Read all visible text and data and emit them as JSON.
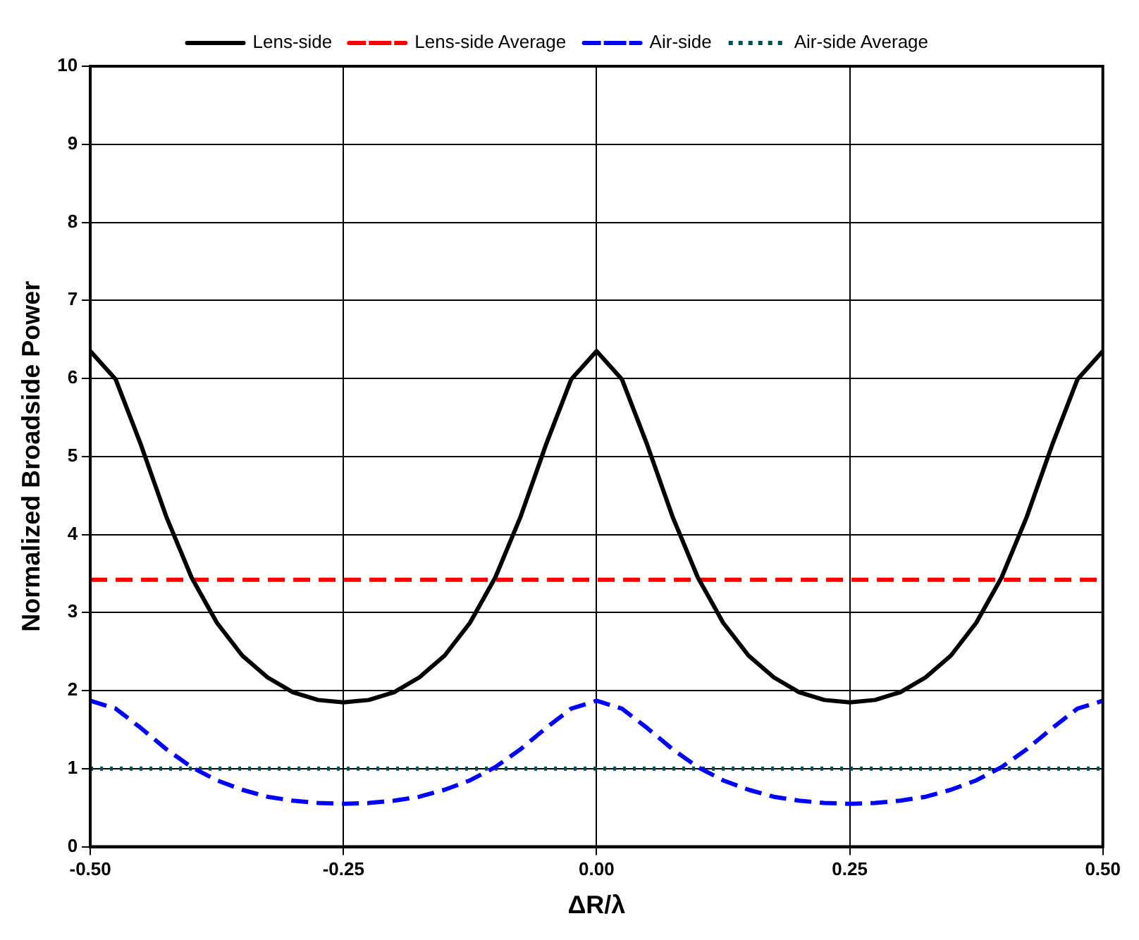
{
  "chart_data": {
    "type": "line",
    "xlabel": "ΔR/λ",
    "ylabel": "Normalized Broadside Power",
    "x": [
      -0.5,
      -0.475,
      -0.45,
      -0.425,
      -0.4,
      -0.375,
      -0.35,
      -0.325,
      -0.3,
      -0.275,
      -0.25,
      -0.225,
      -0.2,
      -0.175,
      -0.15,
      -0.125,
      -0.1,
      -0.075,
      -0.05,
      -0.025,
      0,
      0.025,
      0.05,
      0.075,
      0.1,
      0.125,
      0.15,
      0.175,
      0.2,
      0.225,
      0.25,
      0.275,
      0.3,
      0.325,
      0.35,
      0.375,
      0.4,
      0.425,
      0.45,
      0.475,
      0.5
    ],
    "series": [
      {
        "name": "Lens-side",
        "color": "#000000",
        "line_style": "solid",
        "values": [
          6.35,
          5.99,
          5.15,
          4.23,
          3.45,
          2.87,
          2.45,
          2.17,
          1.98,
          1.88,
          1.85,
          1.88,
          1.98,
          2.17,
          2.45,
          2.87,
          3.45,
          4.23,
          5.15,
          5.99,
          6.35,
          5.99,
          5.15,
          4.23,
          3.45,
          2.87,
          2.45,
          2.17,
          1.98,
          1.88,
          1.85,
          1.88,
          1.98,
          2.17,
          2.45,
          2.87,
          3.45,
          4.23,
          5.15,
          5.99,
          6.35
        ]
      },
      {
        "name": "Lens-side Average",
        "color": "#ff0000",
        "line_style": "dashed",
        "values": [
          3.42,
          3.42,
          3.42,
          3.42,
          3.42,
          3.42,
          3.42,
          3.42,
          3.42,
          3.42,
          3.42,
          3.42,
          3.42,
          3.42,
          3.42,
          3.42,
          3.42,
          3.42,
          3.42,
          3.42,
          3.42,
          3.42,
          3.42,
          3.42,
          3.42,
          3.42,
          3.42,
          3.42,
          3.42,
          3.42,
          3.42,
          3.42,
          3.42,
          3.42,
          3.42,
          3.42,
          3.42,
          3.42,
          3.42,
          3.42,
          3.42
        ]
      },
      {
        "name": "Air-side",
        "color": "#0000ff",
        "line_style": "dashed",
        "values": [
          1.87,
          1.77,
          1.52,
          1.25,
          1.02,
          0.85,
          0.73,
          0.64,
          0.59,
          0.56,
          0.55,
          0.56,
          0.59,
          0.64,
          0.73,
          0.85,
          1.02,
          1.25,
          1.52,
          1.77,
          1.87,
          1.77,
          1.52,
          1.25,
          1.02,
          0.85,
          0.73,
          0.64,
          0.59,
          0.56,
          0.55,
          0.56,
          0.59,
          0.64,
          0.73,
          0.85,
          1.02,
          1.25,
          1.52,
          1.77,
          1.87
        ]
      },
      {
        "name": "Air-side Average",
        "color": "#005050",
        "line_style": "dotted",
        "values": [
          1,
          1,
          1,
          1,
          1,
          1,
          1,
          1,
          1,
          1,
          1,
          1,
          1,
          1,
          1,
          1,
          1,
          1,
          1,
          1,
          1,
          1,
          1,
          1,
          1,
          1,
          1,
          1,
          1,
          1,
          1,
          1,
          1,
          1,
          1,
          1,
          1,
          1,
          1,
          1,
          1
        ]
      }
    ],
    "xlim": [
      -0.5,
      0.5
    ],
    "xticks": [
      {
        "value": -0.5,
        "label": "-0.50"
      },
      {
        "value": -0.25,
        "label": "-0.25"
      },
      {
        "value": 0,
        "label": "0.00"
      },
      {
        "value": 0.25,
        "label": "0.25"
      },
      {
        "value": 0.5,
        "label": "0.50"
      }
    ],
    "ylim": [
      0,
      10
    ],
    "yticks": [
      0,
      1,
      2,
      3,
      4,
      5,
      6,
      7,
      8,
      9,
      10
    ],
    "grid": true,
    "legend": "top",
    "marker": "none"
  }
}
